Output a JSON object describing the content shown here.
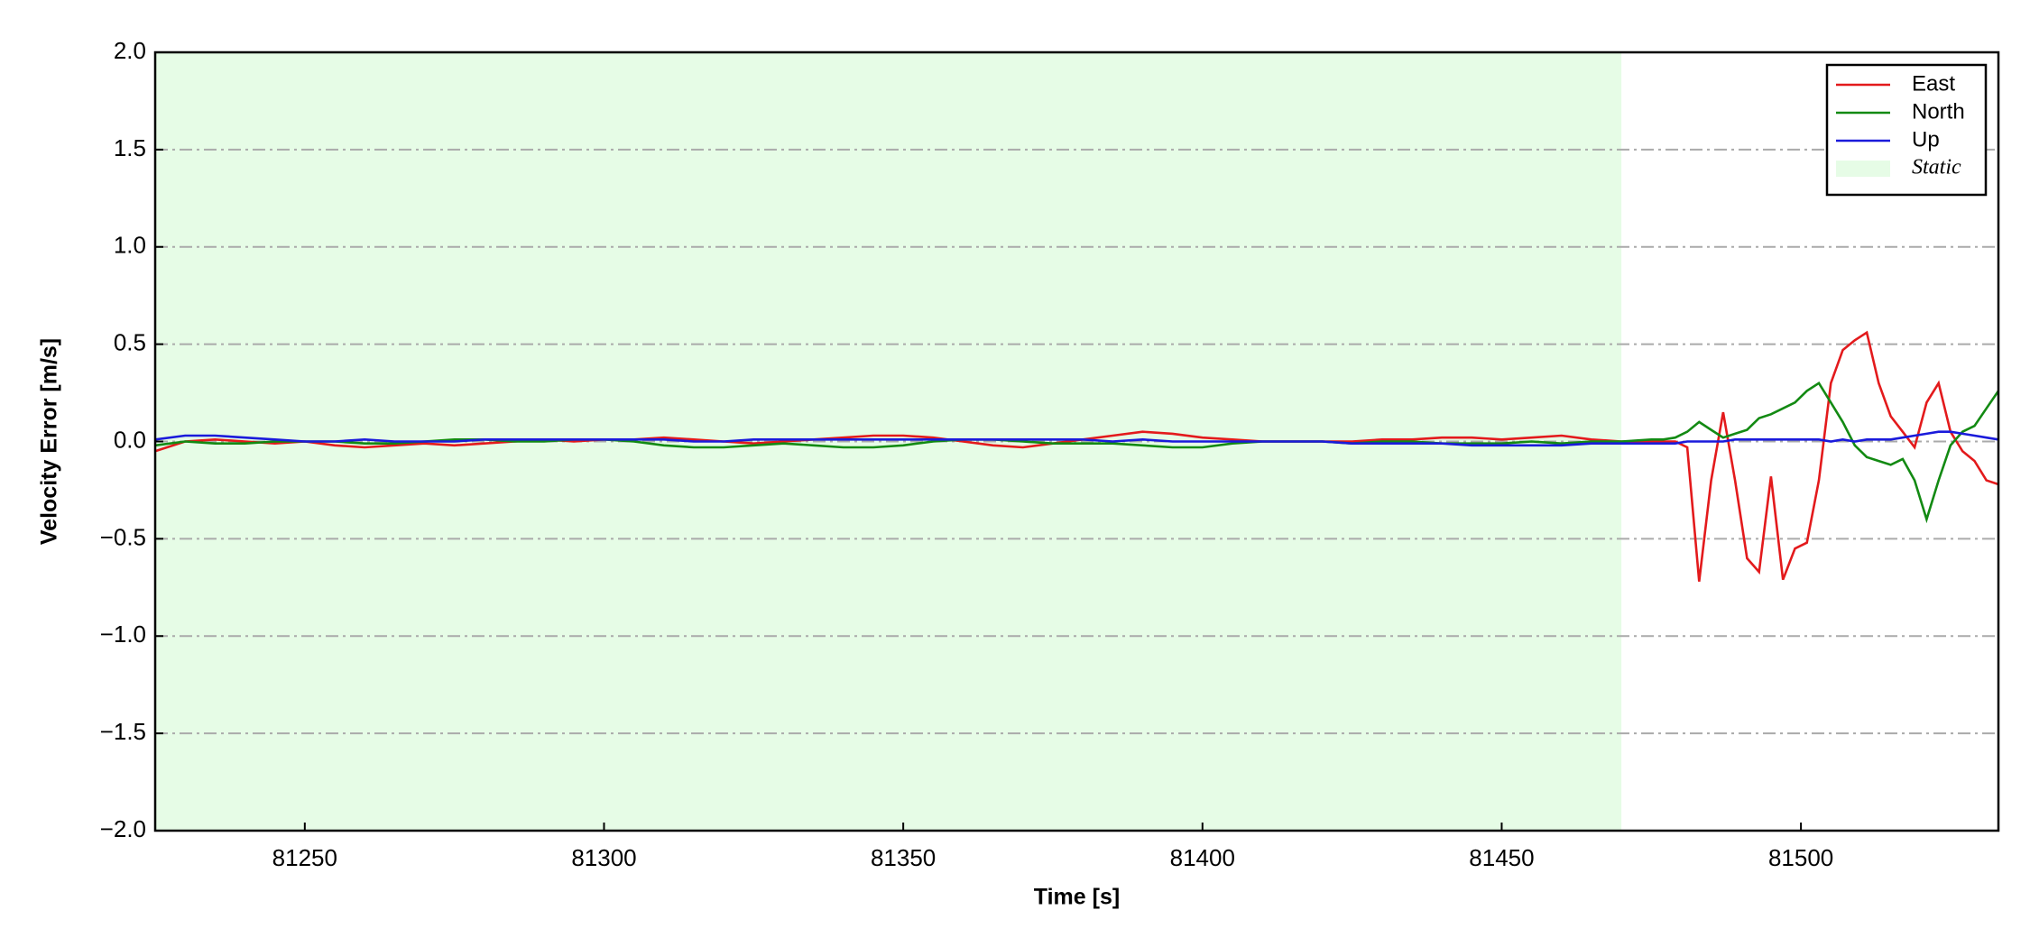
{
  "chart_data": {
    "type": "line",
    "x_label": "Time [s]",
    "y_label": "Velocity Error [m/s]",
    "x": [
      81225,
      81230,
      81235,
      81240,
      81245,
      81250,
      81255,
      81260,
      81265,
      81270,
      81275,
      81280,
      81285,
      81290,
      81295,
      81300,
      81305,
      81310,
      81315,
      81320,
      81325,
      81330,
      81335,
      81340,
      81345,
      81350,
      81355,
      81360,
      81365,
      81370,
      81375,
      81380,
      81385,
      81390,
      81395,
      81400,
      81405,
      81410,
      81415,
      81420,
      81425,
      81430,
      81435,
      81440,
      81445,
      81450,
      81455,
      81460,
      81465,
      81470,
      81475,
      81477,
      81479,
      81481,
      81483,
      81485,
      81487,
      81489,
      81491,
      81493,
      81495,
      81497,
      81499,
      81501,
      81503,
      81505,
      81507,
      81509,
      81511,
      81513,
      81515,
      81517,
      81519,
      81521,
      81523,
      81525,
      81527,
      81529,
      81531,
      81533
    ],
    "series": [
      {
        "name": "East",
        "color": "#e31a1c",
        "values": [
          -0.05,
          0,
          0.01,
          0,
          -0.01,
          0,
          -0.02,
          -0.03,
          -0.02,
          -0.01,
          -0.02,
          -0.01,
          0,
          0.01,
          0,
          0.01,
          0.01,
          0.02,
          0.01,
          0,
          -0.01,
          0,
          0.01,
          0.02,
          0.03,
          0.03,
          0.02,
          0,
          -0.02,
          -0.03,
          -0.01,
          0.01,
          0.03,
          0.05,
          0.04,
          0.02,
          0.01,
          0,
          0,
          0,
          0,
          0.01,
          0.01,
          0.02,
          0.02,
          0.01,
          0.02,
          0.03,
          0.01,
          0,
          0,
          0,
          0,
          -0.03,
          -0.72,
          -0.2,
          0.15,
          -0.2,
          -0.6,
          -0.67,
          -0.18,
          -0.71,
          -0.55,
          -0.52,
          -0.2,
          0.3,
          0.47,
          0.52,
          0.56,
          0.3,
          0.13,
          0.05,
          -0.03,
          0.2,
          0.3,
          0.05,
          -0.05,
          -0.1,
          -0.2,
          -0.22
        ]
      },
      {
        "name": "North",
        "color": "#138a13",
        "values": [
          -0.02,
          0,
          -0.01,
          -0.01,
          0,
          0,
          0,
          -0.01,
          -0.01,
          0,
          0.01,
          0.01,
          0,
          0,
          0.01,
          0.01,
          0,
          -0.02,
          -0.03,
          -0.03,
          -0.02,
          -0.01,
          -0.02,
          -0.03,
          -0.03,
          -0.02,
          0,
          0.01,
          0.01,
          0,
          -0.01,
          -0.01,
          -0.01,
          -0.02,
          -0.03,
          -0.03,
          -0.01,
          0,
          0,
          0,
          -0.01,
          0,
          0,
          -0.01,
          -0.01,
          -0.01,
          0,
          -0.01,
          0,
          0,
          0.01,
          0.01,
          0.02,
          0.05,
          0.1,
          0.06,
          0.02,
          0.04,
          0.06,
          0.12,
          0.14,
          0.17,
          0.2,
          0.26,
          0.3,
          0.2,
          0.1,
          -0.02,
          -0.08,
          -0.1,
          -0.12,
          -0.09,
          -0.2,
          -0.4,
          -0.2,
          -0.02,
          0.05,
          0.08,
          0.17,
          0.26
        ]
      },
      {
        "name": "Up",
        "color": "#1a1adb",
        "values": [
          0.01,
          0.03,
          0.03,
          0.02,
          0.01,
          0,
          0,
          0.01,
          0,
          0,
          0,
          0.01,
          0.01,
          0.01,
          0.01,
          0.01,
          0.01,
          0.01,
          0,
          0,
          0.01,
          0.01,
          0.01,
          0.01,
          0.01,
          0.01,
          0.01,
          0.01,
          0.01,
          0.01,
          0.01,
          0.01,
          0,
          0.01,
          0,
          0,
          0,
          0,
          0,
          0,
          -0.01,
          -0.01,
          -0.01,
          -0.01,
          -0.02,
          -0.02,
          -0.02,
          -0.02,
          -0.01,
          -0.01,
          -0.01,
          -0.01,
          -0.01,
          0,
          0,
          0,
          0,
          0.01,
          0.01,
          0.01,
          0.01,
          0.01,
          0.01,
          0.01,
          0.01,
          0,
          0.01,
          0,
          0.01,
          0.01,
          0.01,
          0.02,
          0.03,
          0.04,
          0.05,
          0.05,
          0.04,
          0.03,
          0.02,
          0.01
        ]
      }
    ],
    "shaded_regions": [
      {
        "name": "Static",
        "xlim": [
          81225,
          81470
        ],
        "color": "#e6fce6"
      }
    ],
    "xlim": [
      81225,
      81533
    ],
    "xticks": [
      81250,
      81300,
      81350,
      81400,
      81450,
      81500
    ],
    "ylim": [
      -2,
      2
    ],
    "yticks": [
      {
        "value": -2,
        "label": "−2.0"
      },
      {
        "value": -1.5,
        "label": "−1.5"
      },
      {
        "value": -1,
        "label": "−1.0"
      },
      {
        "value": -0.5,
        "label": "−0.5"
      },
      {
        "value": 0,
        "label": "0.0"
      },
      0.5,
      {
        "value": 1,
        "label": "1.0"
      },
      1.5,
      {
        "value": 2,
        "label": "2.0"
      }
    ],
    "grid": "y",
    "legend": "upper right"
  }
}
